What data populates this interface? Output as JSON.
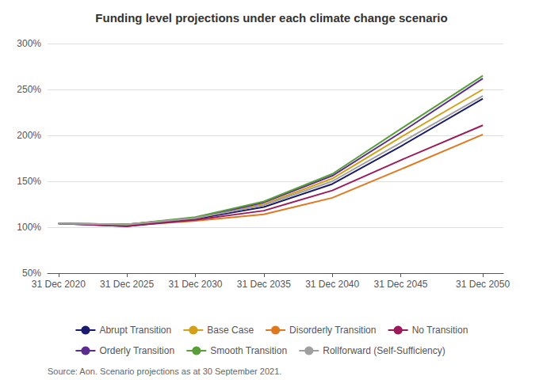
{
  "chart_data": {
    "type": "line",
    "title": "Funding level projections under each climate change scenario",
    "annotations": [
      "Source: Aon. Scenario projections as at 30 September 2021."
    ],
    "x": [
      2020,
      2025,
      2030,
      2035,
      2040,
      2045,
      2051
    ],
    "xlim": [
      2019.2,
      2052.5
    ],
    "xticks": [
      {
        "value": 2020,
        "label": "31 Dec 2020"
      },
      {
        "value": 2025,
        "label": "31 Dec 2025"
      },
      {
        "value": 2030,
        "label": "31 Dec 2030"
      },
      {
        "value": 2035,
        "label": "31 Dec 2035"
      },
      {
        "value": 2040,
        "label": "31 Dec 2040"
      },
      {
        "value": 2045,
        "label": "31 Dec 2045"
      },
      {
        "value": 2051,
        "label": "31 Dec 2050"
      }
    ],
    "ylim": [
      0.5,
      3.0
    ],
    "yticks": [
      {
        "value": 0.5,
        "label": "50%"
      },
      {
        "value": 1.0,
        "label": "100%"
      },
      {
        "value": 1.5,
        "label": "150%"
      },
      {
        "value": 2.0,
        "label": "200%"
      },
      {
        "value": 2.5,
        "label": "250%"
      },
      {
        "value": 3.0,
        "label": "300%"
      }
    ],
    "grid": true,
    "legend": "bottom",
    "series": [
      {
        "name": "Abrupt Transition",
        "color": "#1a1a6e",
        "line_style": "solid",
        "values": [
          1.04,
          1.01,
          1.09,
          1.22,
          1.47,
          1.88,
          2.4
        ]
      },
      {
        "name": "Base Case",
        "color": "#d4a017",
        "line_style": "solid",
        "values": [
          1.04,
          1.03,
          1.1,
          1.25,
          1.53,
          1.98,
          2.5
        ]
      },
      {
        "name": "Disorderly Transition",
        "color": "#e07820",
        "line_style": "solid",
        "values": [
          1.04,
          1.02,
          1.07,
          1.14,
          1.32,
          1.63,
          2.01
        ]
      },
      {
        "name": "No Transition",
        "color": "#9b1b5a",
        "line_style": "solid",
        "values": [
          1.04,
          1.01,
          1.08,
          1.18,
          1.4,
          1.73,
          2.11
        ]
      },
      {
        "name": "Orderly Transition",
        "color": "#5b2d8e",
        "line_style": "solid",
        "values": [
          1.04,
          1.03,
          1.1,
          1.27,
          1.56,
          2.03,
          2.62
        ]
      },
      {
        "name": "Smooth Transition",
        "color": "#5a9e3a",
        "line_style": "solid",
        "values": [
          1.04,
          1.03,
          1.11,
          1.28,
          1.58,
          2.07,
          2.65
        ]
      },
      {
        "name": "Rollforward (Self-Sufficiency)",
        "color": "#a0a0a0",
        "line_style": "solid",
        "values": [
          1.04,
          1.03,
          1.1,
          1.24,
          1.5,
          1.92,
          2.43
        ]
      }
    ]
  }
}
